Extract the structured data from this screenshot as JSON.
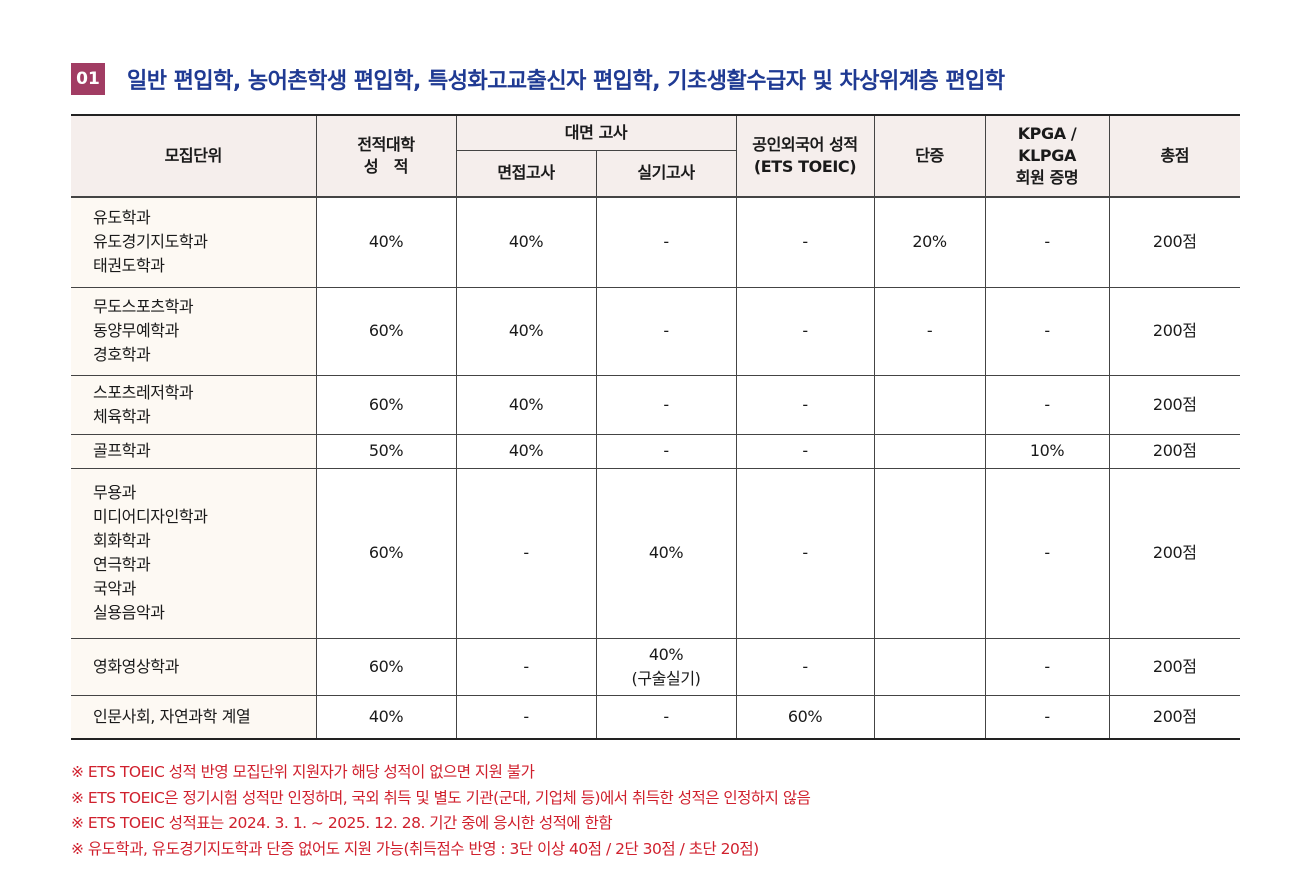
{
  "section": {
    "number": "01",
    "title": "일반 편입학, 농어촌학생 편입학, 특성화고교출신자 편입학, 기초생활수급자 및 차상위계층 편입학"
  },
  "table": {
    "headers": {
      "unit": "모집단위",
      "grade_line1": "전적대학",
      "grade_line2": "성　적",
      "interview_group": "대면 고사",
      "interview": "면접고사",
      "practical": "실기고사",
      "toeic_line1": "공인외국어 성적",
      "toeic_line2": "(ETS TOEIC)",
      "dan": "단증",
      "kpga_line1": "KPGA /",
      "kpga_line2": "KLPGA",
      "kpga_line3": "회원 증명",
      "total": "총점"
    },
    "rows": [
      {
        "depts": [
          "유도학과",
          "유도경기지도학과",
          "태권도학과"
        ],
        "grade": "40%",
        "interview": "40%",
        "practical": "-",
        "toeic": "-",
        "dan": "20%",
        "kpga": "-",
        "total": "200점"
      },
      {
        "depts": [
          "무도스포츠학과",
          "동양무예학과",
          "경호학과"
        ],
        "grade": "60%",
        "interview": "40%",
        "practical": "-",
        "toeic": "-",
        "dan": "-",
        "kpga": "-",
        "total": "200점"
      },
      {
        "depts": [
          "스포츠레저학과",
          "체육학과"
        ],
        "grade": "60%",
        "interview": "40%",
        "practical": "-",
        "toeic": "-",
        "dan": "",
        "kpga": "-",
        "total": "200점"
      },
      {
        "depts": [
          "골프학과"
        ],
        "grade": "50%",
        "interview": "40%",
        "practical": "-",
        "toeic": "-",
        "dan": "",
        "kpga": "10%",
        "total": "200점"
      },
      {
        "depts": [
          "무용과",
          "미디어디자인학과",
          "회화학과",
          "연극학과",
          "국악과",
          "실용음악과"
        ],
        "grade": "60%",
        "interview": "-",
        "practical": "40%",
        "toeic": "-",
        "dan": "",
        "kpga": "-",
        "total": "200점"
      },
      {
        "depts": [
          "영화영상학과"
        ],
        "grade": "60%",
        "interview": "-",
        "practical": "40%",
        "practical_note": "(구술실기)",
        "toeic": "-",
        "dan": "",
        "kpga": "-",
        "total": "200점"
      },
      {
        "depts": [
          "인문사회, 자연과학 계열"
        ],
        "grade": "40%",
        "interview": "-",
        "practical": "-",
        "toeic": "60%",
        "dan": "",
        "kpga": "-",
        "total": "200점"
      }
    ]
  },
  "notes": [
    "※ ETS TOEIC 성적 반영 모집단위 지원자가 해당 성적이 없으면 지원 불가",
    "※ ETS TOEIC은 정기시험 성적만 인정하며, 국외 취득 및 별도 기관(군대, 기업체 등)에서 취득한 성적은 인정하지 않음",
    "※ ETS TOEIC 성적표는 2024. 3. 1. ~ 2025. 12. 28. 기간 중에 응시한 성적에 한함",
    "※ 유도학과, 유도경기지도학과 단증 없어도 지원 가능(취득점수 반영 : 3단 이상 40점 / 2단 30점 / 초단 20점)"
  ],
  "colors": {
    "badge": "#a13c63",
    "title": "#1f3a93",
    "header_bg": "#f5eeec",
    "dept_bg": "#fdf9f3",
    "notes": "#d0202d"
  }
}
